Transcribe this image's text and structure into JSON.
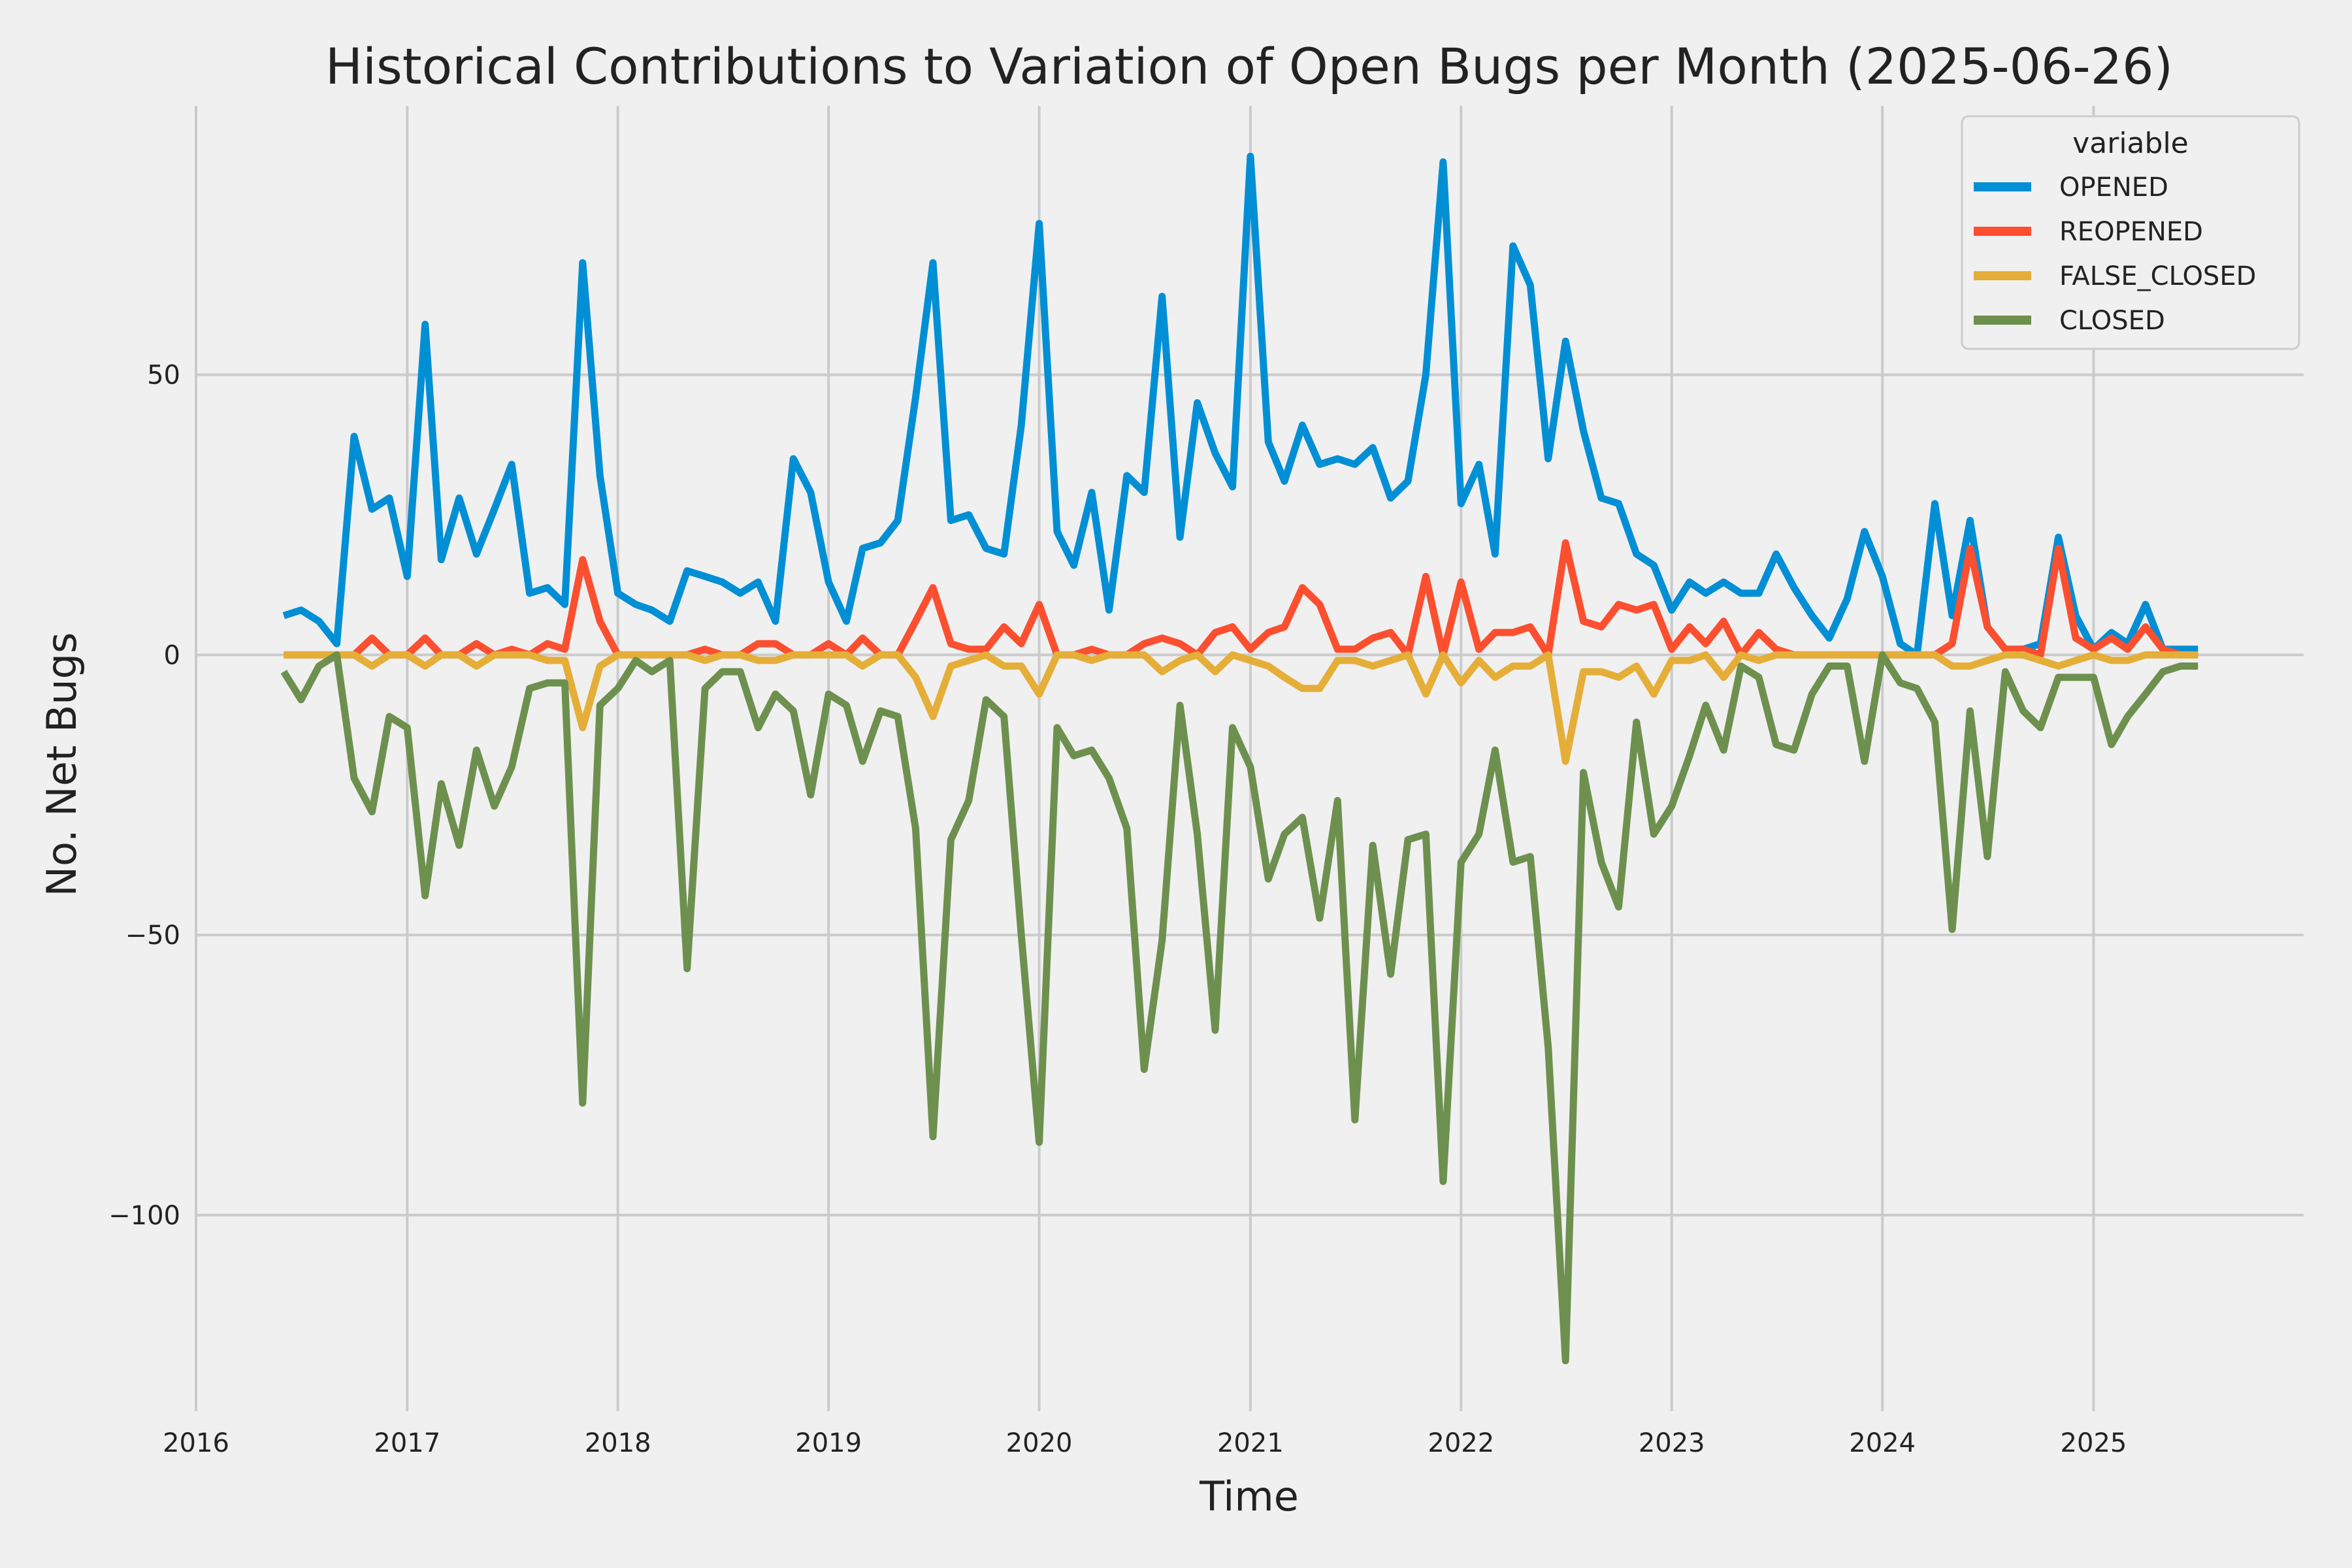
{
  "chart_data": {
    "type": "line",
    "title": "Historical Contributions to Variation of Open Bugs per Month (2025-06-26)",
    "xlabel": "Time",
    "ylabel": "No. Net Bugs",
    "x_ticks": [
      "2016",
      "2017",
      "2018",
      "2019",
      "2020",
      "2021",
      "2022",
      "2023",
      "2024",
      "2025"
    ],
    "y_ticks": [
      {
        "value": 50,
        "label": "50"
      },
      {
        "value": 0,
        "label": "0"
      },
      {
        "value": -50,
        "label": "−50"
      },
      {
        "value": -100,
        "label": "−100"
      }
    ],
    "xlim": [
      "2016-01-01",
      "2025-12-31"
    ],
    "ylim": [
      -135,
      98
    ],
    "grid": true,
    "legend": {
      "title": "variable",
      "position": "top-right"
    },
    "x": [
      "2016-06",
      "2016-07",
      "2016-08",
      "2016-09",
      "2016-10",
      "2016-11",
      "2016-12",
      "2017-01",
      "2017-02",
      "2017-03",
      "2017-04",
      "2017-05",
      "2017-06",
      "2017-07",
      "2017-08",
      "2017-09",
      "2017-10",
      "2017-11",
      "2017-12",
      "2018-01",
      "2018-02",
      "2018-03",
      "2018-04",
      "2018-05",
      "2018-06",
      "2018-07",
      "2018-08",
      "2018-09",
      "2018-10",
      "2018-11",
      "2018-12",
      "2019-01",
      "2019-02",
      "2019-03",
      "2019-04",
      "2019-05",
      "2019-06",
      "2019-07",
      "2019-08",
      "2019-09",
      "2019-10",
      "2019-11",
      "2019-12",
      "2020-01",
      "2020-02",
      "2020-03",
      "2020-04",
      "2020-05",
      "2020-06",
      "2020-07",
      "2020-08",
      "2020-09",
      "2020-10",
      "2020-11",
      "2020-12",
      "2021-01",
      "2021-02",
      "2021-03",
      "2021-04",
      "2021-05",
      "2021-06",
      "2021-07",
      "2021-08",
      "2021-09",
      "2021-10",
      "2021-11",
      "2021-12",
      "2022-01",
      "2022-02",
      "2022-03",
      "2022-04",
      "2022-05",
      "2022-06",
      "2022-07",
      "2022-08",
      "2022-09",
      "2022-10",
      "2022-11",
      "2022-12",
      "2023-01",
      "2023-02",
      "2023-03",
      "2023-04",
      "2023-05",
      "2023-06",
      "2023-07",
      "2023-08",
      "2023-09",
      "2023-10",
      "2023-11",
      "2023-12",
      "2024-01",
      "2024-02",
      "2024-03",
      "2024-04",
      "2024-05",
      "2024-06",
      "2024-07",
      "2024-08",
      "2024-09",
      "2024-10",
      "2024-11",
      "2024-12",
      "2025-01",
      "2025-02",
      "2025-03",
      "2025-04",
      "2025-05",
      "2025-06",
      "2025-07"
    ],
    "series": [
      {
        "name": "OPENED",
        "color": "#008fd5",
        "values": [
          7,
          8,
          6,
          2,
          39,
          26,
          28,
          14,
          59,
          17,
          28,
          18,
          26,
          34,
          11,
          12,
          9,
          70,
          32,
          11,
          9,
          8,
          6,
          15,
          14,
          13,
          11,
          13,
          6,
          35,
          29,
          13,
          6,
          19,
          20,
          24,
          46,
          70,
          24,
          25,
          19,
          18,
          41,
          77,
          22,
          16,
          29,
          8,
          32,
          29,
          64,
          21,
          45,
          36,
          30,
          89,
          38,
          31,
          41,
          34,
          35,
          34,
          37,
          28,
          31,
          50,
          88,
          27,
          34,
          18,
          73,
          66,
          35,
          56,
          40,
          28,
          27,
          18,
          16,
          8,
          13,
          11,
          13,
          11,
          11,
          18,
          12,
          7,
          3,
          10,
          22,
          14,
          2,
          0,
          27,
          7,
          24,
          5,
          1,
          1,
          2,
          21,
          7,
          1,
          4,
          2,
          9,
          1,
          1,
          1
        ]
      },
      {
        "name": "REOPENED",
        "color": "#fc4f30",
        "values": [
          0,
          0,
          0,
          0,
          0,
          3,
          0,
          0,
          3,
          0,
          0,
          2,
          0,
          1,
          0,
          2,
          1,
          17,
          6,
          0,
          0,
          0,
          0,
          0,
          1,
          0,
          0,
          2,
          2,
          0,
          0,
          2,
          0,
          3,
          0,
          0,
          6,
          12,
          2,
          1,
          1,
          5,
          2,
          9,
          0,
          0,
          1,
          0,
          0,
          2,
          3,
          2,
          0,
          4,
          5,
          1,
          4,
          5,
          12,
          9,
          1,
          1,
          3,
          4,
          0,
          14,
          0,
          13,
          1,
          4,
          4,
          5,
          0,
          20,
          6,
          5,
          9,
          8,
          9,
          1,
          5,
          2,
          6,
          0,
          4,
          1,
          0,
          0,
          0,
          0,
          0,
          0,
          0,
          0,
          0,
          2,
          19,
          5,
          1,
          1,
          0,
          19,
          3,
          1,
          3,
          1,
          5,
          1,
          0,
          0
        ]
      },
      {
        "name": "FALSE_CLOSED",
        "color": "#e5ae38",
        "values": [
          0,
          0,
          0,
          0,
          0,
          -2,
          0,
          0,
          -2,
          0,
          0,
          -2,
          0,
          0,
          0,
          -1,
          -1,
          -13,
          -2,
          0,
          0,
          0,
          0,
          0,
          -1,
          0,
          0,
          -1,
          -1,
          0,
          0,
          0,
          0,
          -2,
          0,
          0,
          -4,
          -11,
          -2,
          -1,
          0,
          -2,
          -2,
          -7,
          0,
          0,
          -1,
          0,
          0,
          0,
          -3,
          -1,
          0,
          -3,
          0,
          -1,
          -2,
          -4,
          -6,
          -6,
          -1,
          -1,
          -2,
          -1,
          0,
          -7,
          0,
          -5,
          -1,
          -4,
          -2,
          -2,
          0,
          -19,
          -3,
          -3,
          -4,
          -2,
          -7,
          -1,
          -1,
          0,
          -4,
          0,
          -1,
          0,
          0,
          0,
          0,
          0,
          0,
          0,
          0,
          0,
          0,
          -2,
          -2,
          -1,
          0,
          0,
          -1,
          -2,
          -1,
          0,
          -1,
          -1,
          0,
          0,
          0,
          0
        ]
      },
      {
        "name": "CLOSED",
        "color": "#6d904f",
        "values": [
          -3,
          -8,
          -2,
          0,
          -22,
          -28,
          -11,
          -13,
          -43,
          -23,
          -34,
          -17,
          -27,
          -20,
          -6,
          -5,
          -5,
          -80,
          -9,
          -6,
          -1,
          -3,
          -1,
          -56,
          -6,
          -3,
          -3,
          -13,
          -7,
          -10,
          -25,
          -7,
          -9,
          -19,
          -10,
          -11,
          -31,
          -86,
          -33,
          -26,
          -8,
          -11,
          -50,
          -87,
          -13,
          -18,
          -17,
          -22,
          -31,
          -74,
          -51,
          -9,
          -32,
          -67,
          -13,
          -20,
          -40,
          -32,
          -29,
          -47,
          -26,
          -83,
          -34,
          -57,
          -33,
          -32,
          -94,
          -37,
          -32,
          -17,
          -37,
          -36,
          -70,
          -126,
          -21,
          -37,
          -45,
          -12,
          -32,
          -27,
          -18,
          -9,
          -17,
          -2,
          -4,
          -16,
          -17,
          -7,
          -2,
          -2,
          -19,
          0,
          -5,
          -6,
          -12,
          -49,
          -10,
          -36,
          -3,
          -10,
          -13,
          -4,
          -4,
          -4,
          -16,
          -11,
          -7,
          -3,
          -2,
          -2
        ]
      }
    ]
  }
}
